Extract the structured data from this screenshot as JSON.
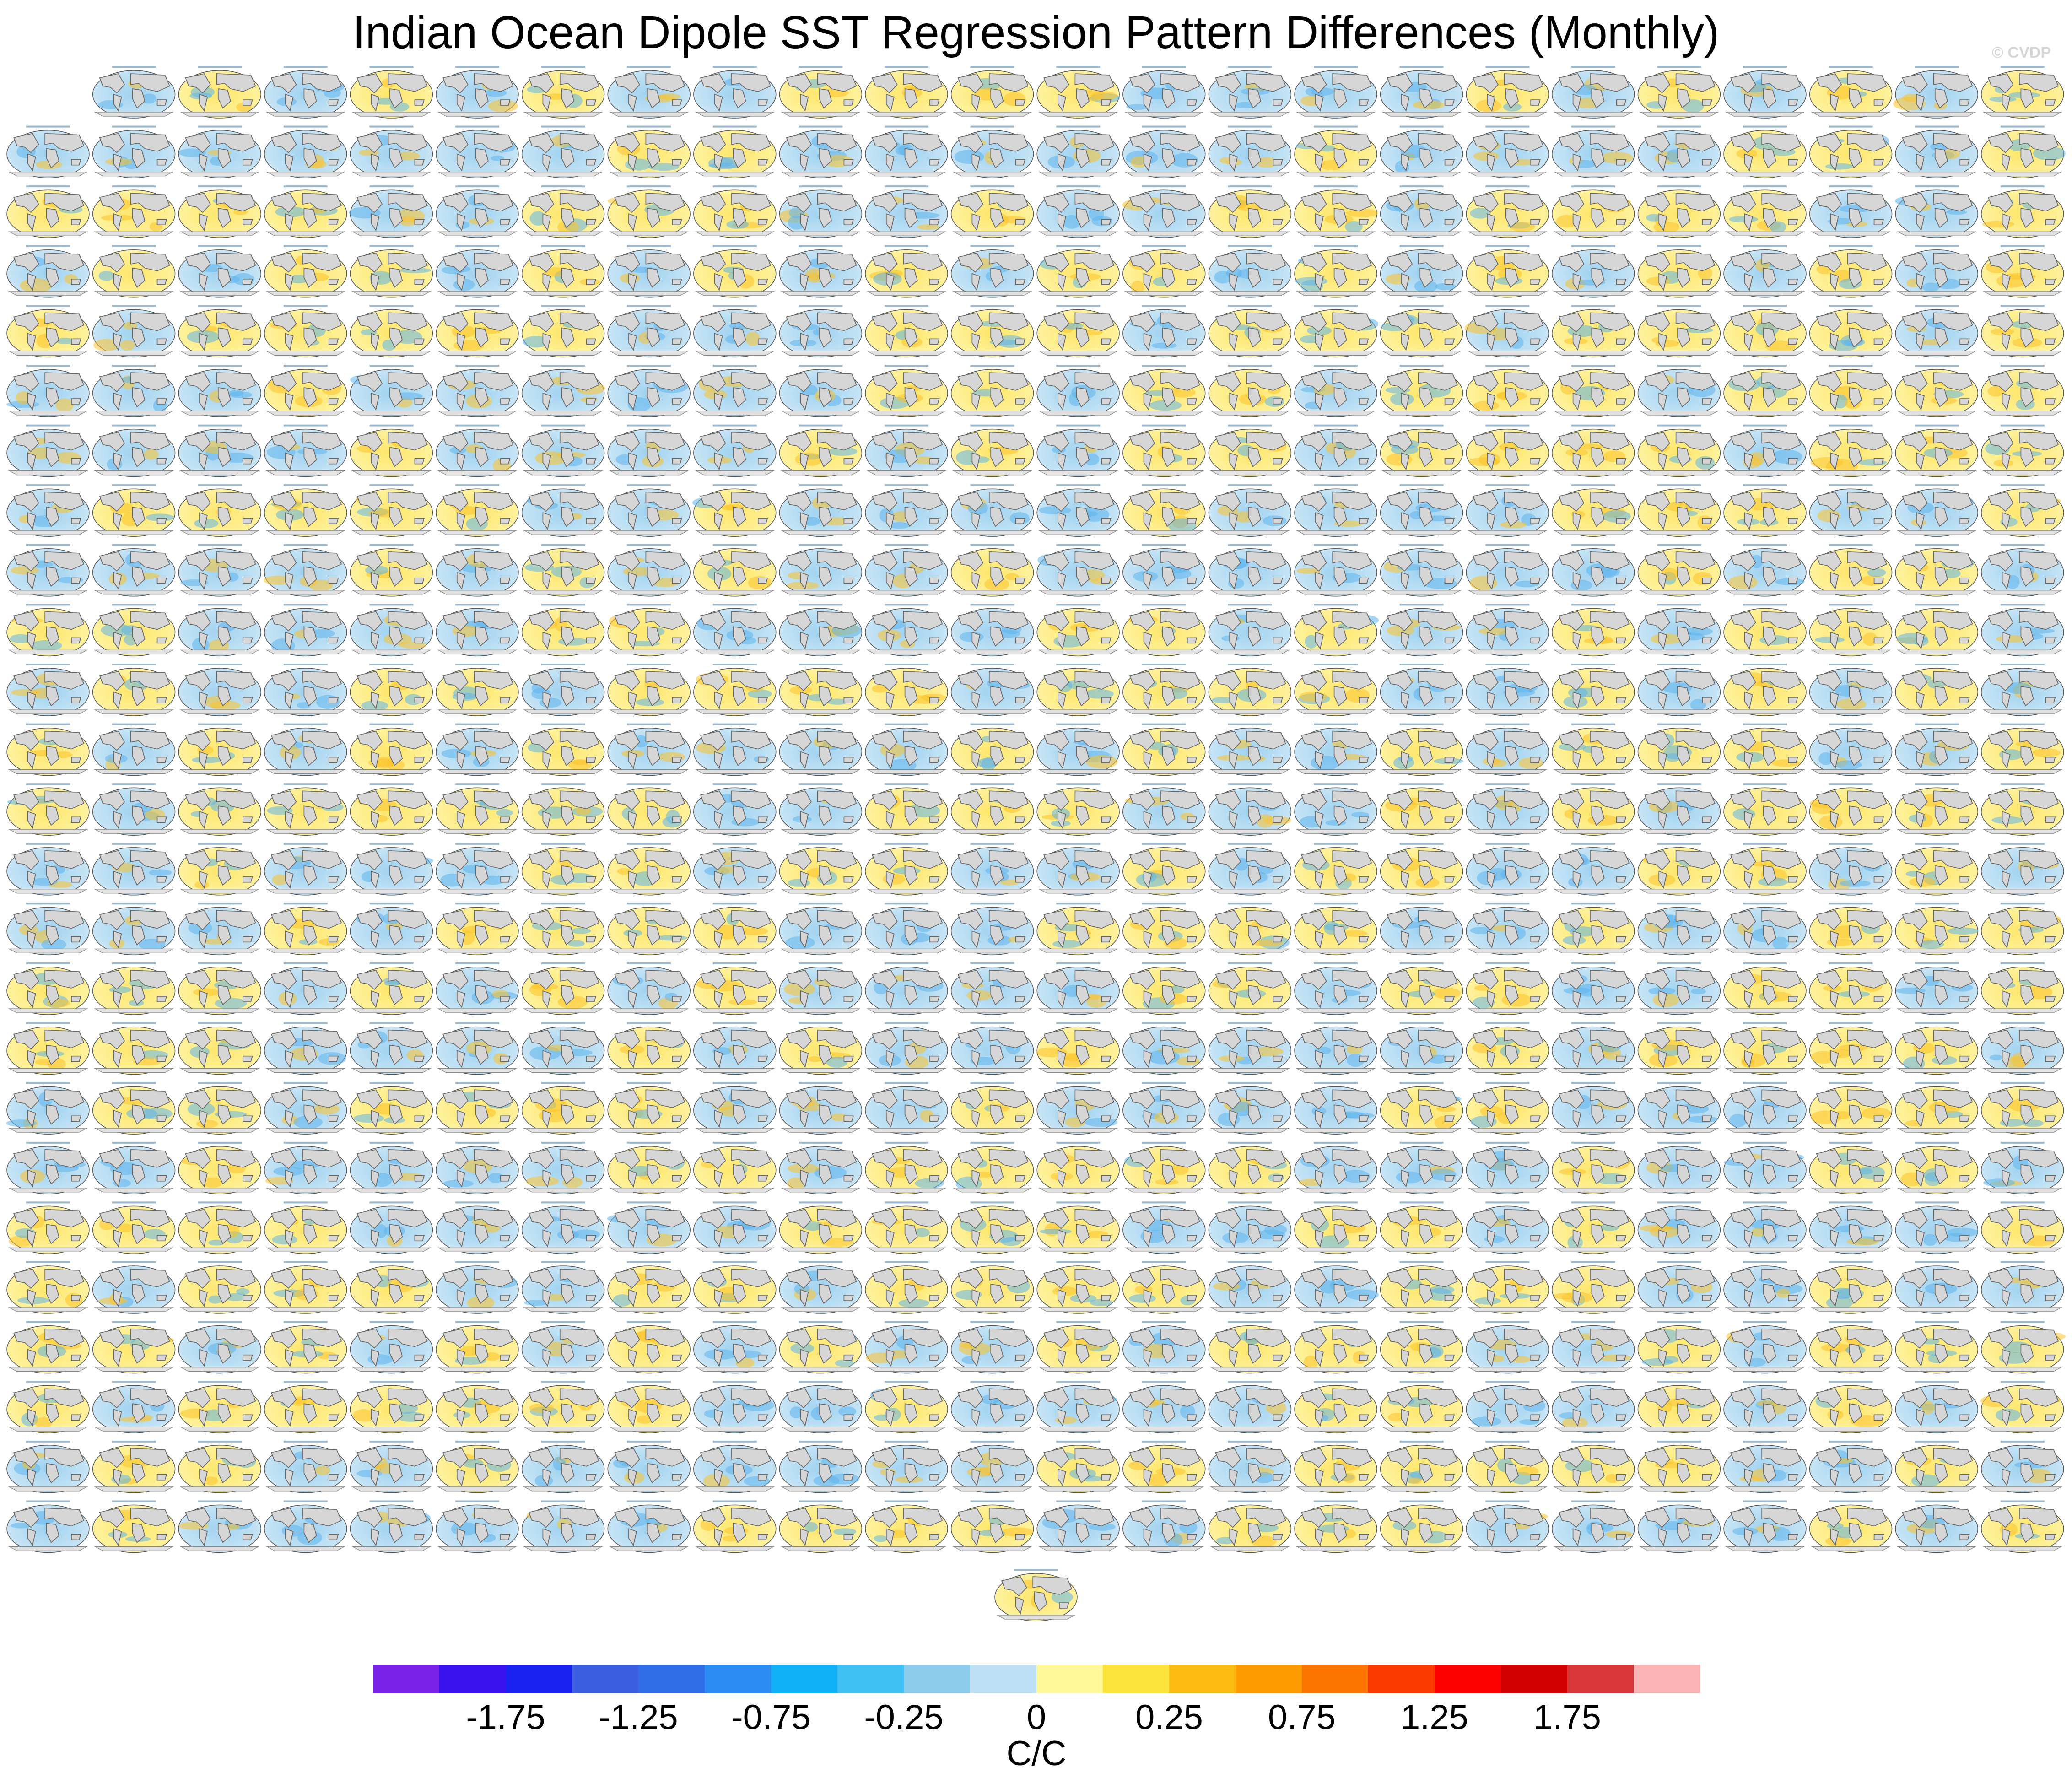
{
  "title": "Indian Ocean Dipole SST Regression Pattern Differences (Monthly)",
  "watermark": "© CVDP",
  "chart_data": {
    "type": "heatmap",
    "title": "Indian Ocean Dipole SST Regression Pattern Differences (Monthly)",
    "panel_layout": {
      "columns": 24,
      "rows": 25,
      "first_row_panels": 23,
      "extra_centered_panels": 1,
      "total_panels": 576
    },
    "colorbar": {
      "unit": "C/C",
      "orientation": "horizontal",
      "tick_labels": [
        "-1.75",
        "-1.25",
        "-0.75",
        "-0.25",
        "0",
        "0.25",
        "0.75",
        "1.25",
        "1.75"
      ],
      "colors": [
        "#7b22e8",
        "#3a12f0",
        "#1a22f2",
        "#3c5fe2",
        "#2f6ee8",
        "#2a8cf2",
        "#0fb0f5",
        "#3fc0f2",
        "#8ecdee",
        "#bfe0f4",
        "#fff79a",
        "#fde23a",
        "#fcbb12",
        "#fc9a00",
        "#fc7400",
        "#fc3a00",
        "#fc0000",
        "#d20000",
        "#d83838",
        "#fcb4b4"
      ]
    }
  }
}
